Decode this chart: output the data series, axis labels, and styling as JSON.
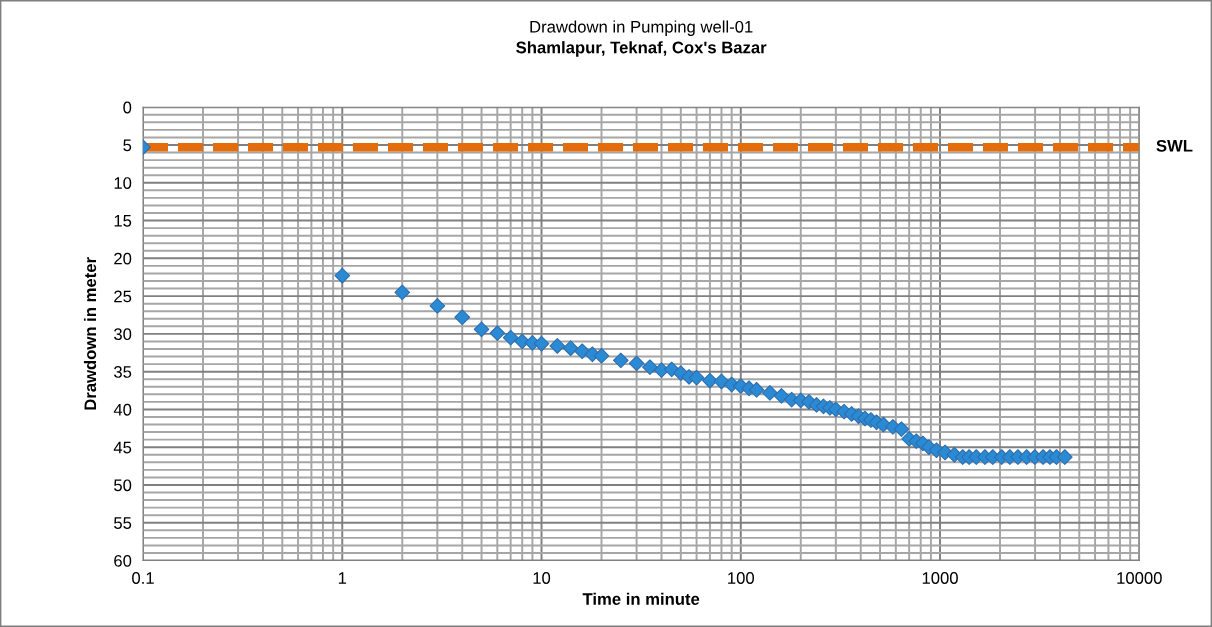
{
  "chart_data": {
    "type": "scatter",
    "title": "Drawdown in Pumping well-01",
    "subtitle": "Shamlapur, Teknaf, Cox's Bazar",
    "xlabel": "Time in minute",
    "ylabel": "Drawdown in meter",
    "series": [
      {
        "color": "#2a8ad4",
        "x": [
          0.1,
          1,
          2,
          3,
          4,
          5,
          6,
          7,
          8,
          9,
          10,
          12,
          14,
          16,
          18,
          20,
          25,
          30,
          35,
          40,
          45,
          50,
          55,
          60,
          70,
          80,
          90,
          100,
          110,
          120,
          140,
          160,
          180,
          200,
          220,
          240,
          260,
          280,
          300,
          330,
          360,
          390,
          420,
          450,
          480,
          520,
          580,
          640,
          700,
          760,
          820,
          880,
          960,
          1060,
          1180,
          1300,
          1400,
          1520,
          1680,
          1840,
          2040,
          2240,
          2460,
          2720,
          2990,
          3290,
          3560,
          3840,
          4230
        ],
        "values": [
          5.3,
          22.3,
          24.5,
          26.3,
          27.8,
          29.4,
          29.9,
          30.5,
          31.0,
          31.2,
          31.3,
          31.6,
          31.9,
          32.3,
          32.7,
          32.9,
          33.5,
          33.9,
          34.4,
          34.8,
          34.7,
          35.2,
          35.7,
          35.8,
          36.2,
          36.3,
          36.7,
          36.9,
          37.2,
          37.4,
          37.8,
          38.2,
          38.7,
          38.8,
          39.0,
          39.4,
          39.6,
          39.8,
          40.0,
          40.3,
          40.6,
          40.9,
          41.2,
          41.4,
          41.7,
          42.0,
          42.3,
          42.6,
          43.9,
          44.2,
          44.5,
          45.0,
          45.4,
          45.7,
          46.0,
          46.3,
          46.3,
          46.3,
          46.3,
          46.3,
          46.3,
          46.3,
          46.3,
          46.3,
          46.3,
          46.3,
          46.3,
          46.3,
          46.3
        ]
      }
    ],
    "marker": "diamond",
    "log": "x",
    "xlim": [
      0.1,
      10000
    ],
    "xticks": [
      0.1,
      1,
      10,
      100,
      1000,
      10000
    ],
    "ylim": [
      60,
      0
    ],
    "yticks": [
      0,
      5,
      10,
      15,
      20,
      25,
      30,
      35,
      40,
      45,
      50,
      55,
      60
    ],
    "ref_lines": [
      {
        "axis": "y",
        "value": 5.3,
        "label": "SWL",
        "color": "#e46c0a",
        "line_style": "dashed"
      }
    ],
    "grid": true,
    "legend": false
  }
}
